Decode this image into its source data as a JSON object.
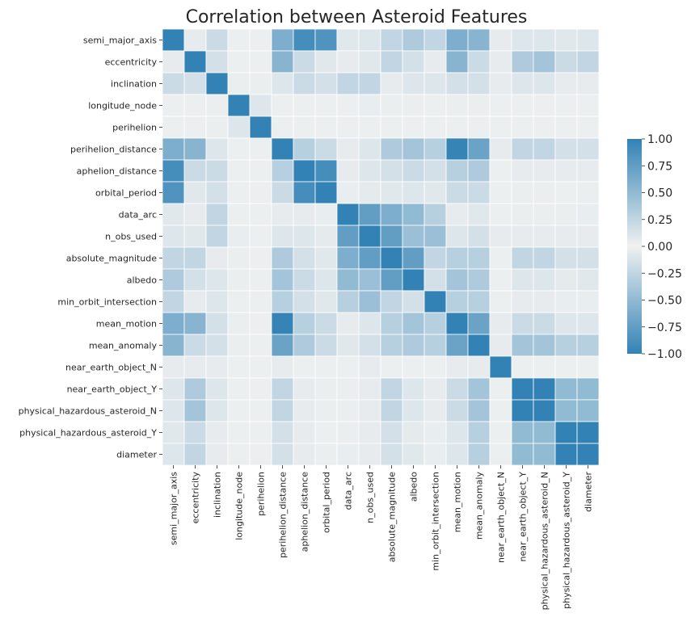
{
  "chart_data": {
    "type": "heatmap",
    "title": "Correlation between Asteroid Features",
    "xlabel": "",
    "ylabel": "",
    "labels": [
      "semi_major_axis",
      "eccentricity",
      "inclination",
      "longitude_node",
      "perihelion",
      "perihelion_distance",
      "aphelion_distance",
      "orbital_period",
      "data_arc",
      "n_obs_used",
      "absolute_magnitude",
      "albedo",
      "min_orbit_intersection",
      "mean_motion",
      "mean_anomaly",
      "near_earth_object_N",
      "near_earth_object_Y",
      "physical_hazardous_asteroid_N",
      "physical_hazardous_asteroid_Y",
      "diameter"
    ],
    "values": [
      [
        1.0,
        0.05,
        0.2,
        0.02,
        0.02,
        0.6,
        0.9,
        0.85,
        0.08,
        0.1,
        0.25,
        0.35,
        0.25,
        0.6,
        0.55,
        0.05,
        0.1,
        0.1,
        0.08,
        0.1
      ],
      [
        0.05,
        1.0,
        0.15,
        0.02,
        0.02,
        0.55,
        0.2,
        0.08,
        0.05,
        0.08,
        0.25,
        0.15,
        0.05,
        0.55,
        0.2,
        0.05,
        0.35,
        0.4,
        0.2,
        0.25
      ],
      [
        0.2,
        0.15,
        1.0,
        0.03,
        0.03,
        0.1,
        0.2,
        0.15,
        0.25,
        0.25,
        0.05,
        0.1,
        0.1,
        0.15,
        0.15,
        0.05,
        0.1,
        0.1,
        0.05,
        0.05
      ],
      [
        0.02,
        0.02,
        0.03,
        1.0,
        0.1,
        0.02,
        0.02,
        0.02,
        0.02,
        0.04,
        0.03,
        0.03,
        0.02,
        0.03,
        0.03,
        0.02,
        0.02,
        0.02,
        0.02,
        0.02
      ],
      [
        0.02,
        0.02,
        0.03,
        0.1,
        1.0,
        0.02,
        0.02,
        0.02,
        0.02,
        0.02,
        0.02,
        0.02,
        0.02,
        0.02,
        0.02,
        0.02,
        0.02,
        0.02,
        0.02,
        0.02
      ],
      [
        0.6,
        0.55,
        0.1,
        0.02,
        0.02,
        1.0,
        0.3,
        0.2,
        0.05,
        0.1,
        0.35,
        0.4,
        0.3,
        0.98,
        0.7,
        0.05,
        0.25,
        0.25,
        0.15,
        0.15
      ],
      [
        0.9,
        0.2,
        0.2,
        0.02,
        0.02,
        0.3,
        1.0,
        0.9,
        0.05,
        0.1,
        0.15,
        0.2,
        0.15,
        0.3,
        0.35,
        0.02,
        0.05,
        0.05,
        0.05,
        0.05
      ],
      [
        0.85,
        0.08,
        0.15,
        0.02,
        0.02,
        0.2,
        0.9,
        1.0,
        0.04,
        0.06,
        0.08,
        0.1,
        0.08,
        0.2,
        0.2,
        0.02,
        0.03,
        0.03,
        0.02,
        0.03
      ],
      [
        0.08,
        0.05,
        0.25,
        0.02,
        0.02,
        0.05,
        0.05,
        0.04,
        1.0,
        0.75,
        0.6,
        0.5,
        0.3,
        0.05,
        0.08,
        0.02,
        0.03,
        0.03,
        0.03,
        0.04
      ],
      [
        0.1,
        0.08,
        0.25,
        0.04,
        0.02,
        0.1,
        0.1,
        0.06,
        0.75,
        1.0,
        0.75,
        0.45,
        0.45,
        0.1,
        0.15,
        0.05,
        0.05,
        0.05,
        0.05,
        0.05
      ],
      [
        0.25,
        0.25,
        0.05,
        0.03,
        0.02,
        0.35,
        0.15,
        0.08,
        0.6,
        0.75,
        1.0,
        0.75,
        0.25,
        0.3,
        0.3,
        0.02,
        0.25,
        0.25,
        0.15,
        0.15
      ],
      [
        0.35,
        0.15,
        0.1,
        0.03,
        0.02,
        0.4,
        0.2,
        0.1,
        0.5,
        0.45,
        0.75,
        1.0,
        0.15,
        0.4,
        0.35,
        0.02,
        0.1,
        0.1,
        0.06,
        0.08
      ],
      [
        0.25,
        0.05,
        0.1,
        0.02,
        0.02,
        0.3,
        0.15,
        0.08,
        0.3,
        0.45,
        0.25,
        0.15,
        1.0,
        0.3,
        0.3,
        0.02,
        0.05,
        0.05,
        0.04,
        0.04
      ],
      [
        0.6,
        0.55,
        0.15,
        0.03,
        0.02,
        0.98,
        0.3,
        0.2,
        0.05,
        0.1,
        0.3,
        0.4,
        0.3,
        1.0,
        0.7,
        0.05,
        0.2,
        0.2,
        0.1,
        0.1
      ],
      [
        0.55,
        0.2,
        0.15,
        0.03,
        0.02,
        0.7,
        0.35,
        0.2,
        0.08,
        0.15,
        0.3,
        0.35,
        0.3,
        0.7,
        1.0,
        0.05,
        0.4,
        0.4,
        0.3,
        0.3
      ],
      [
        0.05,
        0.05,
        0.05,
        0.02,
        0.02,
        0.05,
        0.02,
        0.02,
        0.02,
        0.05,
        0.02,
        0.02,
        0.02,
        0.05,
        0.05,
        1.0,
        0.02,
        0.02,
        0.02,
        0.02
      ],
      [
        0.1,
        0.35,
        0.1,
        0.02,
        0.02,
        0.25,
        0.05,
        0.03,
        0.03,
        0.05,
        0.25,
        0.1,
        0.05,
        0.2,
        0.4,
        0.02,
        1.0,
        1.0,
        0.5,
        0.5
      ],
      [
        0.1,
        0.4,
        0.1,
        0.02,
        0.02,
        0.25,
        0.05,
        0.03,
        0.03,
        0.05,
        0.25,
        0.1,
        0.05,
        0.2,
        0.4,
        0.02,
        1.0,
        1.0,
        0.5,
        0.5
      ],
      [
        0.08,
        0.2,
        0.05,
        0.02,
        0.02,
        0.15,
        0.05,
        0.02,
        0.03,
        0.05,
        0.15,
        0.06,
        0.04,
        0.1,
        0.3,
        0.02,
        0.5,
        0.5,
        1.0,
        1.0
      ],
      [
        0.1,
        0.25,
        0.05,
        0.02,
        0.02,
        0.15,
        0.05,
        0.03,
        0.04,
        0.05,
        0.15,
        0.08,
        0.04,
        0.1,
        0.3,
        0.02,
        0.5,
        0.5,
        1.0,
        1.0
      ]
    ],
    "colorbar": {
      "vmin": -1.0,
      "vmax": 1.0,
      "ticks": [
        "1.00",
        "0.75",
        "0.50",
        "0.25",
        "0.00",
        "−0.25",
        "−0.50",
        "−0.75",
        "−1.00"
      ],
      "tick_values": [
        1.0,
        0.75,
        0.5,
        0.25,
        0.0,
        -0.25,
        -0.5,
        -0.75,
        -1.0
      ]
    },
    "colors": {
      "extreme": "#3282b5",
      "center": "#f0f1f1",
      "cell_border": "#ffffff",
      "text": "#262626"
    },
    "grid": false,
    "legend": "colorbar-right"
  }
}
